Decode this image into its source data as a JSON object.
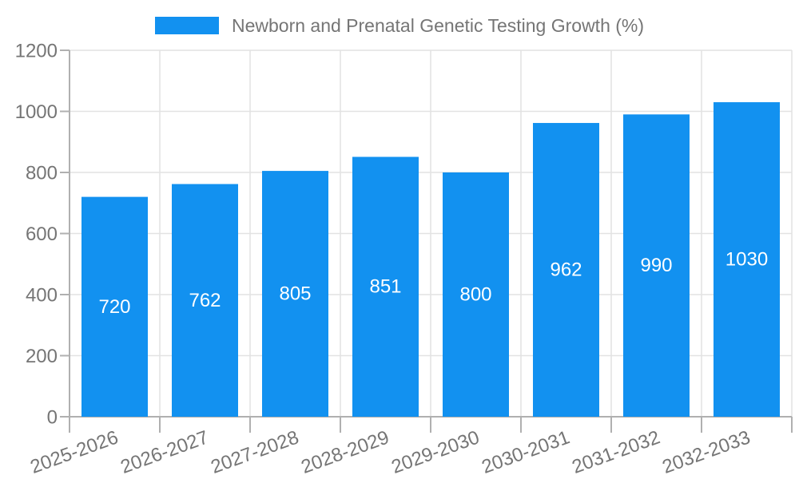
{
  "chart_data": {
    "type": "bar",
    "title": "",
    "xlabel": "",
    "ylabel": "",
    "legend": {
      "position": "top-center",
      "entries": [
        {
          "label": "Newborn and Prenatal Genetic Testing Growth (%)",
          "color": "#1291F0"
        }
      ]
    },
    "categories": [
      "2025-2026",
      "2026-2027",
      "2027-2028",
      "2028-2029",
      "2029-2030",
      "2030-2031",
      "2031-2032",
      "2032-2033"
    ],
    "series": [
      {
        "name": "Newborn and Prenatal Genetic Testing Growth (%)",
        "values": [
          720,
          762,
          805,
          851,
          800,
          962,
          990,
          1030
        ]
      }
    ],
    "ylim": [
      0,
      1200
    ],
    "yticks": [
      0,
      200,
      400,
      600,
      800,
      1000,
      1200
    ],
    "grid": true,
    "x_label_rotation_deg": -20,
    "colors": {
      "bar": "#1291F0",
      "value_label": "#FFFFFF",
      "axis_text": "#757575",
      "legend_text": "#757575",
      "grid_line": "#E2E2E2",
      "axis_line": "#B0B0B0",
      "background": "#FFFFFF"
    }
  }
}
